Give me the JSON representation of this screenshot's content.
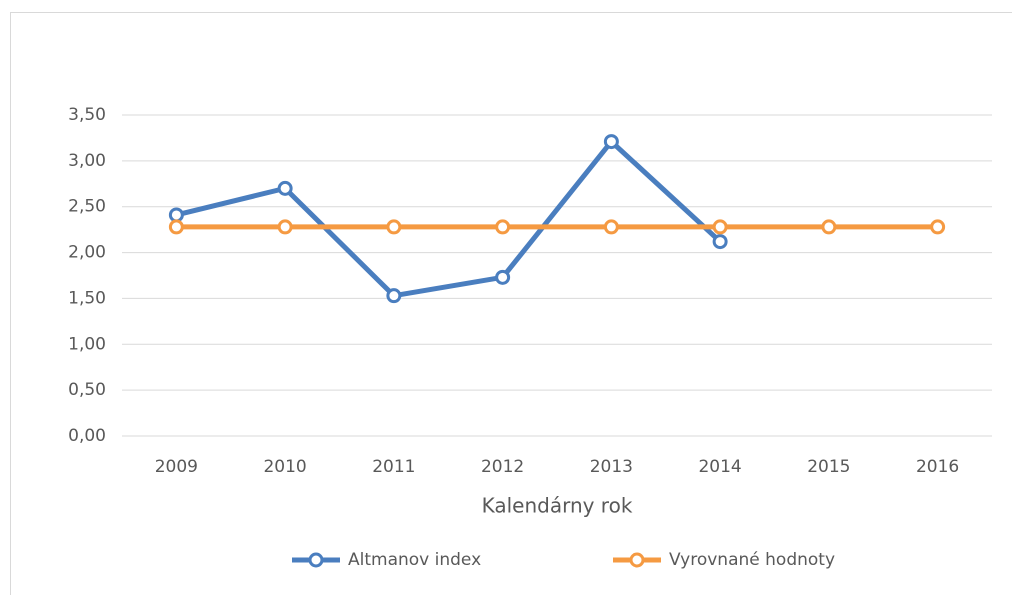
{
  "chart_data": {
    "type": "line",
    "xlabel": "Kalendárny rok",
    "categories": [
      "2009",
      "2010",
      "2011",
      "2012",
      "2013",
      "2014",
      "2015",
      "2016"
    ],
    "series": [
      {
        "name": "Altmanov index",
        "color": "#4a7ebf",
        "values": [
          2.41,
          2.7,
          1.53,
          1.73,
          3.21,
          2.12,
          null,
          null
        ]
      },
      {
        "name": "Vyrovnané hodnoty",
        "color": "#f59a42",
        "values": [
          2.28,
          2.28,
          2.28,
          2.28,
          2.28,
          2.28,
          2.28,
          2.28
        ]
      }
    ],
    "ylim": [
      0,
      3.5
    ],
    "yticks": [
      {
        "value": 0,
        "label": "0,00"
      },
      {
        "value": 0.5,
        "label": "0,50"
      },
      {
        "value": 1,
        "label": "1,00"
      },
      {
        "value": 1.5,
        "label": "1,50"
      },
      {
        "value": 2,
        "label": "2,00"
      },
      {
        "value": 2.5,
        "label": "2,50"
      },
      {
        "value": 3,
        "label": "3,00"
      },
      {
        "value": 3.5,
        "label": "3,50"
      }
    ],
    "grid": true,
    "legend": "bottom"
  }
}
